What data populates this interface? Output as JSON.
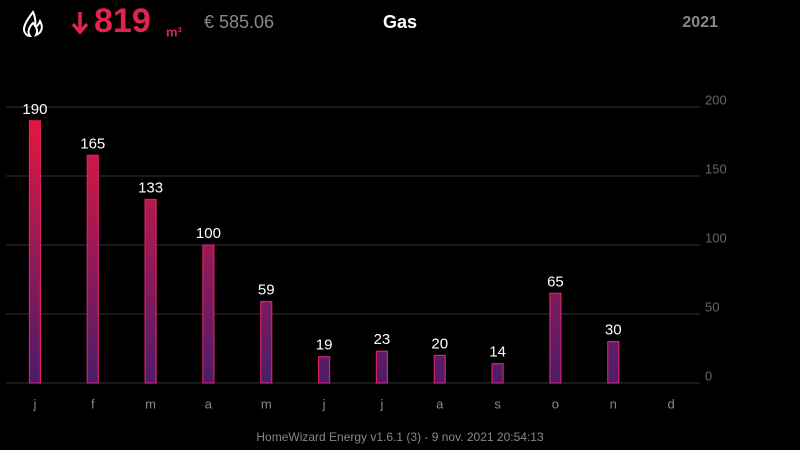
{
  "header": {
    "usage": "819",
    "unit": "m³",
    "cost": "€ 585.06",
    "title": "Gas",
    "year": "2021"
  },
  "chart_data": {
    "type": "bar",
    "categories": [
      "j",
      "f",
      "m",
      "a",
      "m",
      "j",
      "j",
      "a",
      "s",
      "o",
      "n",
      "d"
    ],
    "values": [
      190,
      165,
      133,
      100,
      59,
      19,
      23,
      20,
      14,
      65,
      30,
      null
    ],
    "ylim": [
      0,
      200
    ],
    "yticks": [
      0,
      50,
      100,
      150,
      200
    ],
    "grid": true,
    "colors": [
      "#ea173a",
      "#4b1c6c"
    ],
    "stroke": "#d8206c"
  },
  "footer": "HomeWizard Energy v1.6.1 (3) - 9 nov. 2021 20:54:13"
}
